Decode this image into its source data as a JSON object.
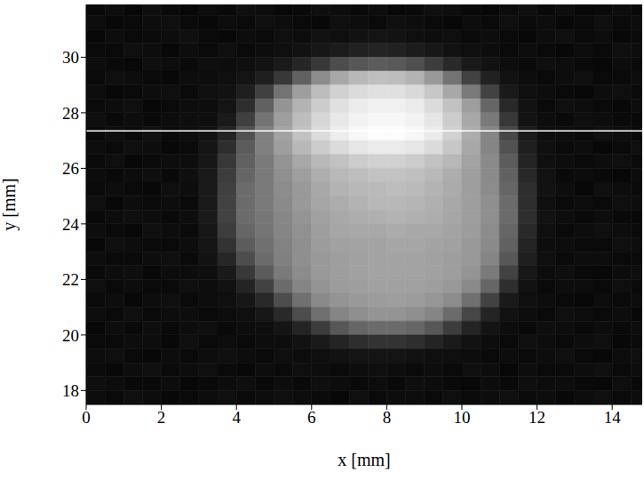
{
  "chart_data": {
    "type": "heatmap",
    "x_label": "x [mm]",
    "y_label": "y [mm]",
    "xlim": [
      0,
      14.8
    ],
    "ylim": [
      17.5,
      31.9
    ],
    "xticks": [
      0,
      2,
      4,
      6,
      8,
      10,
      12,
      14
    ],
    "yticks": [
      18,
      20,
      22,
      24,
      26,
      28,
      30
    ],
    "zlim": [
      0,
      100
    ],
    "hline": {
      "y": 27.35,
      "color": "#ffffff"
    },
    "x_edges": [
      0,
      0.5,
      1,
      1.5,
      2,
      2.5,
      3,
      3.5,
      4,
      4.5,
      5,
      5.5,
      6,
      6.5,
      7,
      7.5,
      8,
      8.5,
      9,
      9.5,
      10,
      10.5,
      11,
      11.5,
      12,
      12.5,
      13,
      13.5,
      14,
      14.5,
      15
    ],
    "y_edges": [
      32,
      31.5,
      31,
      30.5,
      30,
      29.5,
      29,
      28.5,
      28,
      27.5,
      27,
      26.5,
      26,
      25.5,
      25,
      24.5,
      24,
      23.5,
      23,
      22.5,
      22,
      21.5,
      21,
      20.5,
      20,
      19.5,
      19,
      18.5,
      18,
      17.5
    ],
    "cells": [
      [
        4,
        5,
        3,
        6,
        4,
        3,
        5,
        4,
        6,
        5,
        3,
        4,
        6,
        5,
        4,
        5,
        3,
        4,
        6,
        5,
        4,
        3,
        5,
        6,
        4,
        5,
        3,
        4,
        5,
        4
      ],
      [
        5,
        3,
        4,
        5,
        6,
        4,
        3,
        5,
        4,
        6,
        5,
        4,
        3,
        6,
        5,
        4,
        6,
        5,
        4,
        3,
        5,
        4,
        6,
        4,
        5,
        3,
        4,
        6,
        4,
        5
      ],
      [
        3,
        5,
        4,
        4,
        5,
        6,
        4,
        3,
        5,
        4,
        6,
        5,
        7,
        6,
        7,
        8,
        7,
        6,
        5,
        6,
        4,
        5,
        4,
        3,
        5,
        6,
        4,
        5,
        3,
        4
      ],
      [
        4,
        4,
        6,
        5,
        3,
        5,
        4,
        6,
        4,
        5,
        6,
        7,
        9,
        11,
        13,
        14,
        13,
        11,
        9,
        7,
        6,
        5,
        4,
        5,
        4,
        3,
        5,
        4,
        6,
        5
      ],
      [
        5,
        4,
        3,
        6,
        5,
        4,
        6,
        5,
        6,
        7,
        10,
        15,
        22,
        30,
        34,
        36,
        35,
        31,
        24,
        16,
        10,
        7,
        5,
        4,
        6,
        5,
        4,
        3,
        5,
        4
      ],
      [
        4,
        6,
        5,
        4,
        3,
        5,
        5,
        6,
        8,
        12,
        22,
        38,
        55,
        66,
        72,
        75,
        74,
        70,
        60,
        45,
        26,
        13,
        7,
        5,
        4,
        5,
        6,
        4,
        4,
        5
      ],
      [
        5,
        3,
        4,
        5,
        6,
        4,
        6,
        7,
        12,
        25,
        45,
        62,
        74,
        82,
        86,
        88,
        88,
        85,
        78,
        66,
        48,
        26,
        10,
        6,
        5,
        4,
        3,
        5,
        6,
        4
      ],
      [
        4,
        5,
        6,
        3,
        4,
        5,
        5,
        8,
        18,
        38,
        58,
        70,
        80,
        88,
        92,
        94,
        94,
        92,
        86,
        76,
        62,
        40,
        16,
        7,
        4,
        6,
        5,
        4,
        3,
        5
      ],
      [
        6,
        4,
        5,
        4,
        5,
        6,
        6,
        10,
        25,
        46,
        62,
        74,
        84,
        91,
        95,
        97,
        97,
        95,
        90,
        80,
        66,
        48,
        22,
        8,
        5,
        4,
        6,
        5,
        4,
        4
      ],
      [
        3,
        5,
        4,
        6,
        4,
        5,
        7,
        14,
        32,
        50,
        64,
        76,
        86,
        93,
        97,
        99,
        99,
        97,
        92,
        82,
        68,
        52,
        28,
        10,
        5,
        5,
        4,
        6,
        5,
        3
      ],
      [
        5,
        4,
        6,
        5,
        3,
        4,
        8,
        18,
        36,
        50,
        62,
        72,
        80,
        86,
        90,
        92,
        92,
        90,
        86,
        78,
        66,
        52,
        32,
        12,
        6,
        4,
        5,
        3,
        4,
        6
      ],
      [
        4,
        6,
        3,
        4,
        5,
        5,
        9,
        22,
        38,
        48,
        58,
        66,
        72,
        76,
        80,
        82,
        82,
        80,
        76,
        72,
        64,
        54,
        36,
        14,
        6,
        5,
        4,
        5,
        6,
        4
      ],
      [
        5,
        4,
        5,
        6,
        4,
        6,
        10,
        24,
        40,
        48,
        56,
        62,
        68,
        72,
        74,
        76,
        76,
        75,
        72,
        68,
        62,
        54,
        38,
        16,
        7,
        4,
        5,
        4,
        3,
        5
      ],
      [
        4,
        5,
        4,
        3,
        6,
        5,
        10,
        25,
        42,
        48,
        55,
        60,
        66,
        70,
        72,
        73,
        74,
        73,
        70,
        67,
        62,
        55,
        40,
        18,
        7,
        5,
        3,
        6,
        5,
        4
      ],
      [
        6,
        3,
        5,
        4,
        5,
        4,
        10,
        26,
        42,
        48,
        54,
        60,
        65,
        68,
        70,
        72,
        72,
        71,
        69,
        66,
        62,
        56,
        42,
        18,
        6,
        4,
        5,
        4,
        6,
        5
      ],
      [
        4,
        5,
        6,
        5,
        4,
        5,
        10,
        26,
        42,
        47,
        53,
        58,
        63,
        66,
        68,
        69,
        70,
        69,
        68,
        65,
        62,
        56,
        42,
        18,
        7,
        5,
        4,
        5,
        4,
        3
      ],
      [
        5,
        4,
        3,
        6,
        5,
        4,
        9,
        24,
        40,
        46,
        52,
        57,
        62,
        65,
        66,
        66,
        67,
        66,
        66,
        64,
        61,
        55,
        40,
        16,
        6,
        4,
        5,
        6,
        5,
        4
      ],
      [
        3,
        6,
        5,
        4,
        4,
        5,
        8,
        20,
        36,
        44,
        51,
        56,
        61,
        63,
        64,
        64,
        65,
        65,
        64,
        63,
        60,
        54,
        38,
        14,
        5,
        5,
        4,
        4,
        6,
        5
      ],
      [
        5,
        4,
        4,
        5,
        6,
        4,
        7,
        15,
        30,
        42,
        50,
        56,
        60,
        62,
        63,
        64,
        64,
        64,
        63,
        62,
        60,
        52,
        34,
        12,
        6,
        4,
        5,
        5,
        4,
        4
      ],
      [
        4,
        5,
        6,
        3,
        5,
        5,
        6,
        10,
        22,
        36,
        48,
        55,
        60,
        62,
        63,
        64,
        64,
        64,
        63,
        62,
        58,
        48,
        26,
        9,
        5,
        6,
        4,
        3,
        5,
        6
      ],
      [
        6,
        4,
        5,
        4,
        4,
        6,
        5,
        7,
        14,
        26,
        42,
        52,
        58,
        61,
        62,
        63,
        63,
        63,
        62,
        60,
        54,
        40,
        18,
        7,
        4,
        5,
        5,
        4,
        6,
        4
      ],
      [
        4,
        5,
        3,
        5,
        6,
        4,
        5,
        6,
        9,
        16,
        30,
        44,
        54,
        58,
        60,
        61,
        62,
        61,
        59,
        55,
        44,
        26,
        10,
        6,
        5,
        4,
        3,
        5,
        4,
        5
      ],
      [
        5,
        4,
        6,
        4,
        5,
        5,
        4,
        5,
        6,
        9,
        16,
        30,
        44,
        52,
        56,
        58,
        58,
        56,
        52,
        42,
        28,
        14,
        7,
        5,
        4,
        6,
        5,
        4,
        5,
        3
      ],
      [
        3,
        5,
        4,
        6,
        4,
        5,
        6,
        4,
        5,
        6,
        8,
        14,
        24,
        34,
        40,
        42,
        42,
        40,
        34,
        24,
        14,
        8,
        5,
        4,
        6,
        5,
        4,
        5,
        4,
        5
      ],
      [
        4,
        4,
        5,
        5,
        3,
        6,
        4,
        5,
        4,
        5,
        5,
        7,
        10,
        14,
        18,
        20,
        20,
        18,
        14,
        10,
        7,
        5,
        4,
        6,
        5,
        4,
        5,
        6,
        3,
        4
      ],
      [
        5,
        6,
        4,
        3,
        5,
        4,
        5,
        6,
        5,
        4,
        6,
        5,
        6,
        7,
        8,
        8,
        8,
        7,
        6,
        6,
        5,
        4,
        5,
        4,
        5,
        6,
        4,
        3,
        5,
        6
      ],
      [
        4,
        3,
        5,
        6,
        4,
        5,
        6,
        4,
        3,
        5,
        4,
        6,
        5,
        4,
        5,
        6,
        5,
        4,
        5,
        4,
        6,
        5,
        3,
        5,
        4,
        4,
        5,
        6,
        4,
        5
      ],
      [
        6,
        5,
        4,
        4,
        5,
        3,
        4,
        5,
        6,
        4,
        5,
        4,
        6,
        5,
        4,
        5,
        4,
        6,
        5,
        4,
        3,
        5,
        4,
        6,
        5,
        5,
        4,
        3,
        6,
        4
      ],
      [
        5,
        4,
        6,
        5,
        3,
        4,
        5,
        6,
        4,
        5,
        6,
        5,
        4,
        3,
        6,
        4,
        5,
        5,
        4,
        6,
        4,
        5,
        6,
        4,
        5,
        3,
        5,
        6,
        4,
        5
      ]
    ]
  }
}
